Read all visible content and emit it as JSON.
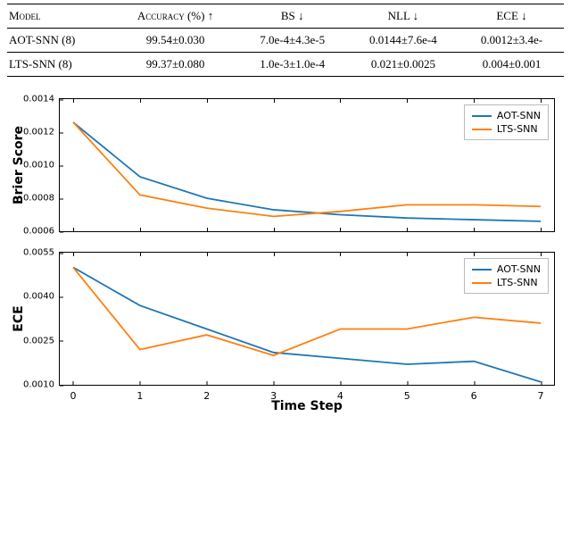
{
  "table": {
    "columns": [
      "Model",
      "Accuracy (%) ↑",
      "BS ↓",
      "NLL ↓",
      "ECE ↓"
    ],
    "rows": [
      [
        "AOT-SNN (8)",
        "99.54±0.030",
        "7.0e-4±4.3e-5",
        "0.0144±7.6e-4",
        "0.0012±3.4e-"
      ],
      [
        "LTS-SNN (8)",
        "99.37±0.080",
        "1.0e-3±1.0e-4",
        "0.021±0.0025",
        "0.004±0.001"
      ]
    ]
  },
  "series_colors": {
    "AOT-SNN": "#1f77b4",
    "LTS-SNN": "#ff7f0e"
  },
  "series_names": [
    "AOT-SNN",
    "LTS-SNN"
  ],
  "x": [
    0,
    1,
    2,
    3,
    4,
    5,
    6,
    7
  ],
  "brier_chart": {
    "type": "line",
    "ylabel": "Brier Score",
    "ylim": [
      0.0006,
      0.0014
    ],
    "yticks": [
      0.0006,
      0.0008,
      0.001,
      0.0012,
      0.0014
    ],
    "ytick_labels": [
      "0.0006",
      "0.0008",
      "0.0010",
      "0.0012",
      "0.0014"
    ],
    "series": {
      "AOT-SNN": [
        0.00126,
        0.00093,
        0.0008,
        0.00073,
        0.0007,
        0.00068,
        0.00067,
        0.00066
      ],
      "LTS-SNN": [
        0.00126,
        0.00082,
        0.00074,
        0.00069,
        0.00072,
        0.00076,
        0.00076,
        0.00075
      ]
    }
  },
  "ece_chart": {
    "type": "line",
    "ylabel": "ECE",
    "xlabel": "Time Step",
    "ylim": [
      0.001,
      0.0055
    ],
    "yticks": [
      0.001,
      0.0025,
      0.004,
      0.0055
    ],
    "ytick_labels": [
      "0.0010",
      "0.0025",
      "0.0040",
      "0.0055"
    ],
    "series": {
      "AOT-SNN": [
        0.005,
        0.0037,
        0.0029,
        0.0021,
        0.0019,
        0.0017,
        0.0018,
        0.0011
      ],
      "LTS-SNN": [
        0.005,
        0.0022,
        0.0027,
        0.002,
        0.0029,
        0.0029,
        0.0033,
        0.0031
      ]
    }
  },
  "line_width": 1.8,
  "font_family": "DejaVu Sans",
  "background_color": "#ffffff",
  "xlim": [
    -0.2,
    7.2
  ]
}
